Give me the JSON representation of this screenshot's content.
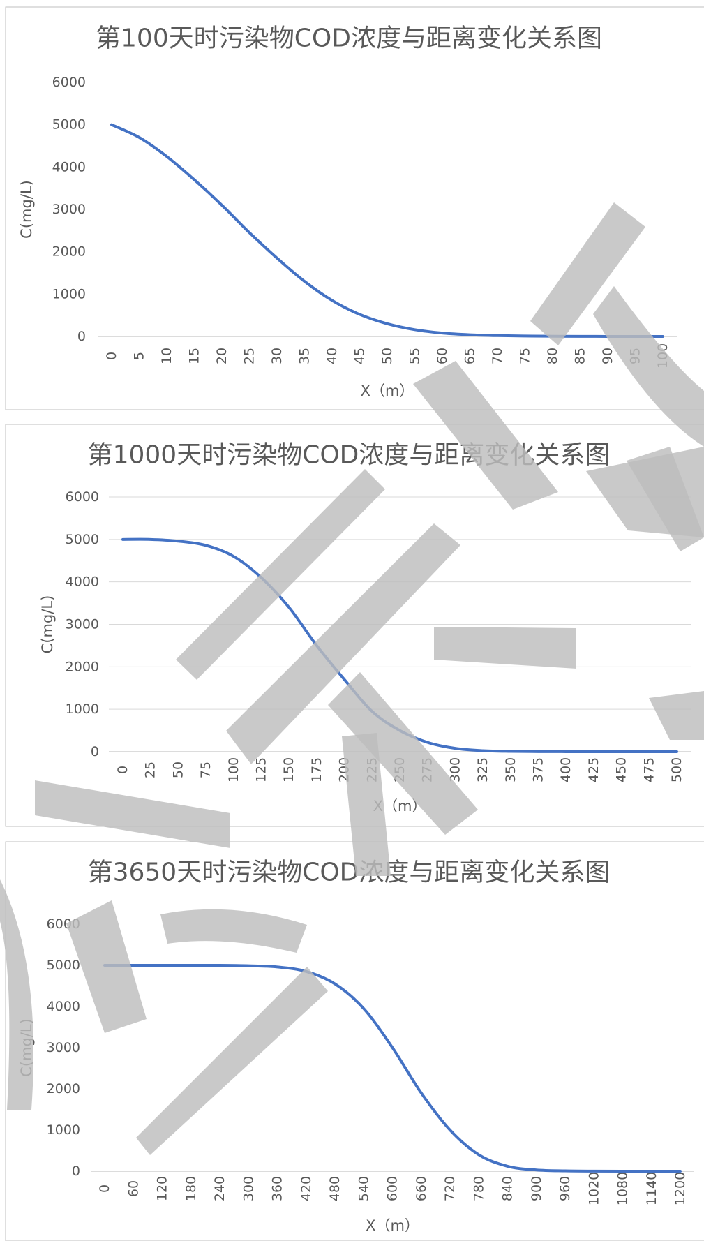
{
  "chart_data": [
    {
      "type": "line",
      "title": "第100天时污染物COD浓度与距离变化关系图",
      "xlabel": "X（m）",
      "ylabel": "C(mg/L)",
      "ylim": [
        0,
        6000
      ],
      "yticks": [
        "0",
        "1000",
        "2000",
        "3000",
        "4000",
        "5000",
        "6000"
      ],
      "grid": false,
      "x": [
        "0",
        "5",
        "10",
        "15",
        "20",
        "25",
        "30",
        "35",
        "40",
        "45",
        "50",
        "55",
        "60",
        "65",
        "70",
        "75",
        "80",
        "85",
        "90",
        "95",
        "100"
      ],
      "series": [
        {
          "values": [
            5000,
            4700,
            4250,
            3700,
            3100,
            2450,
            1850,
            1300,
            850,
            520,
            300,
            160,
            80,
            40,
            20,
            10,
            5,
            2,
            1,
            0,
            0
          ]
        }
      ]
    },
    {
      "type": "line",
      "title": "第1000天时污染物COD浓度与距离变化关系图",
      "xlabel": "X（m）",
      "ylabel": "C(mg/L)",
      "ylim": [
        0,
        6000
      ],
      "yticks": [
        "0",
        "1000",
        "2000",
        "3000",
        "4000",
        "5000",
        "6000"
      ],
      "grid": true,
      "x": [
        "0",
        "25",
        "50",
        "75",
        "100",
        "125",
        "150",
        "175",
        "200",
        "225",
        "250",
        "275",
        "300",
        "325",
        "350",
        "375",
        "400",
        "425",
        "450",
        "475",
        "500"
      ],
      "series": [
        {
          "values": [
            5000,
            5000,
            4960,
            4860,
            4600,
            4100,
            3400,
            2500,
            1700,
            950,
            500,
            220,
            80,
            25,
            8,
            3,
            1,
            0,
            0,
            0,
            0
          ]
        }
      ]
    },
    {
      "type": "line",
      "title": "第3650天时污染物COD浓度与距离变化关系图",
      "xlabel": "X（m）",
      "ylabel": "C(mg/L)",
      "ylim": [
        0,
        6000
      ],
      "yticks": [
        "0",
        "1000",
        "2000",
        "3000",
        "4000",
        "5000",
        "6000"
      ],
      "grid": false,
      "x": [
        "0",
        "60",
        "120",
        "180",
        "240",
        "300",
        "360",
        "420",
        "480",
        "540",
        "600",
        "660",
        "720",
        "780",
        "840",
        "900",
        "960",
        "1020",
        "1080",
        "1140",
        "1200"
      ],
      "series": [
        {
          "values": [
            5000,
            5000,
            5000,
            5000,
            5000,
            4990,
            4960,
            4850,
            4550,
            3950,
            3000,
            1900,
            1000,
            400,
            120,
            30,
            8,
            2,
            0,
            0,
            0
          ]
        }
      ]
    }
  ]
}
